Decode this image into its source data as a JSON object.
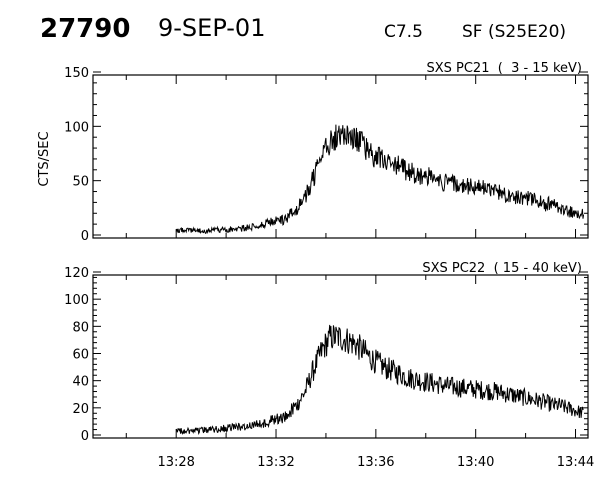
{
  "header": {
    "event_id": "27790",
    "date": "9-SEP-01",
    "flare_class": "C7.5",
    "flare_location": "SF (S25E20)"
  },
  "chart_data": [
    {
      "type": "line",
      "title": "SXS PC21  (  3 - 15 keV)",
      "ylabel": "CTS/SEC",
      "xlabel": "",
      "xlim": [
        "13:24:40",
        "13:44:30"
      ],
      "ylim": [
        0,
        150
      ],
      "yticks": [
        "0",
        "50",
        "100",
        "150"
      ],
      "xtick_labels": [],
      "grid": false,
      "series": [
        {
          "values_note_x": "time",
          "x": [
            "13:28:00",
            "13:28:40",
            "13:29:20",
            "13:30:00",
            "13:30:40",
            "13:31:20",
            "13:31:50",
            "13:32:20",
            "13:32:50",
            "13:33:10",
            "13:33:30",
            "13:33:50",
            "13:34:10",
            "13:34:30",
            "13:34:50",
            "13:35:10",
            "13:35:30",
            "13:35:50",
            "13:36:20",
            "13:36:50",
            "13:37:20",
            "13:37:50",
            "13:38:20",
            "13:38:50",
            "13:39:20",
            "13:39:50",
            "13:40:20",
            "13:40:50",
            "13:41:20",
            "13:41:50",
            "13:42:20",
            "13:42:50",
            "13:43:05",
            "13:43:20",
            "13:43:40",
            "13:44:00",
            "13:44:20"
          ],
          "y": [
            4,
            4,
            4,
            5,
            6,
            9,
            12,
            14,
            24,
            36,
            52,
            72,
            86,
            92,
            94,
            90,
            82,
            74,
            68,
            64,
            58,
            55,
            52,
            48,
            46,
            44,
            43,
            40,
            37,
            35,
            32,
            28,
            30,
            23,
            22,
            20,
            20
          ]
        }
      ]
    },
    {
      "type": "line",
      "title": "SXS PC22  ( 15 - 40 keV)",
      "ylabel": "",
      "xlabel": "",
      "xlim": [
        "13:24:40",
        "13:44:30"
      ],
      "ylim": [
        0,
        120
      ],
      "yticks": [
        "0",
        "20",
        "40",
        "60",
        "80",
        "100",
        "120"
      ],
      "xtick_labels": [
        "13:28",
        "13:32",
        "13:36",
        "13:40",
        "13:44"
      ],
      "grid": false,
      "series": [
        {
          "x": [
            "13:28:00",
            "13:28:40",
            "13:29:20",
            "13:30:00",
            "13:30:40",
            "13:31:20",
            "13:31:50",
            "13:32:20",
            "13:32:50",
            "13:33:10",
            "13:33:30",
            "13:33:50",
            "13:34:10",
            "13:34:30",
            "13:34:50",
            "13:35:10",
            "13:35:30",
            "13:35:50",
            "13:36:20",
            "13:36:50",
            "13:37:20",
            "13:37:50",
            "13:38:20",
            "13:38:50",
            "13:39:20",
            "13:39:50",
            "13:40:20",
            "13:40:50",
            "13:41:20",
            "13:41:50",
            "13:42:20",
            "13:42:50",
            "13:43:05",
            "13:43:20",
            "13:43:40",
            "13:44:00",
            "13:44:20"
          ],
          "y": [
            3,
            3,
            4,
            5,
            6,
            8,
            11,
            13,
            22,
            32,
            48,
            62,
            72,
            72,
            70,
            67,
            62,
            56,
            50,
            46,
            42,
            40,
            38,
            36,
            35,
            34,
            33,
            32,
            30,
            28,
            26,
            24,
            22,
            22,
            20,
            18,
            16
          ]
        }
      ]
    }
  ]
}
